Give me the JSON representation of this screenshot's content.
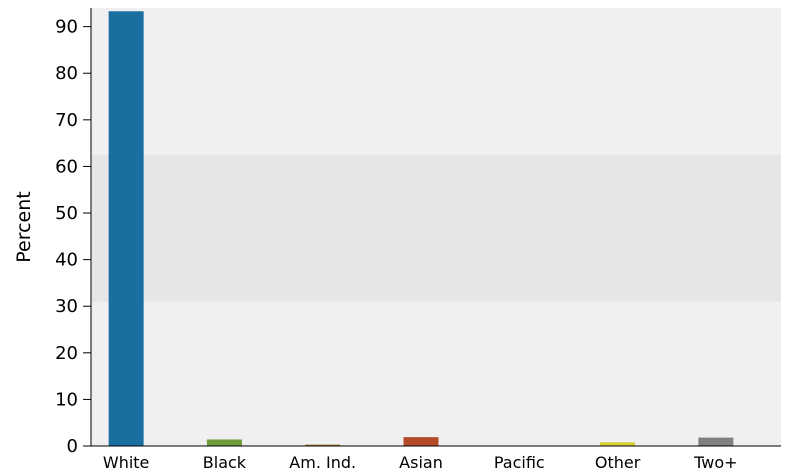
{
  "chart_data": {
    "type": "bar",
    "ylabel": "Percent",
    "xlabel": "",
    "ylim": [
      0,
      94
    ],
    "yticks": [
      0,
      10,
      20,
      30,
      40,
      50,
      60,
      70,
      80,
      90
    ],
    "categories": [
      "White",
      "Black",
      "Am. Ind.",
      "Asian",
      "Pacific",
      "Other",
      "Two+"
    ],
    "values": [
      93.3,
      1.4,
      0.3,
      1.9,
      0.0,
      0.8,
      1.8
    ],
    "colors": [
      "#1a6fa0",
      "#6f9a3c",
      "#a07828",
      "#b34a28",
      "#888888",
      "#d4cf32",
      "#808080"
    ],
    "grid": false,
    "background_bands": {
      "outer_color": "#f0f0f0",
      "middle_color": "#e6e6e6",
      "middle_range": [
        31,
        62.5
      ]
    }
  }
}
